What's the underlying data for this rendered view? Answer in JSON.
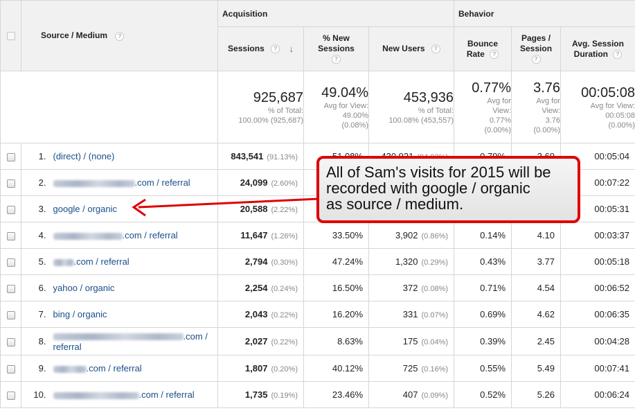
{
  "groups": {
    "acquisition": "Acquisition",
    "behavior": "Behavior"
  },
  "columns": {
    "source_medium": "Source / Medium",
    "sessions": "Sessions",
    "new_sessions": [
      "% New",
      "Sessions"
    ],
    "new_users": "New Users",
    "bounce_rate": [
      "Bounce",
      "Rate"
    ],
    "pages_session": [
      "Pages /",
      "Session"
    ],
    "avg_duration": [
      "Avg. Session",
      "Duration"
    ]
  },
  "icons": {
    "help": "help-circle-icon",
    "sort": "sort-down-arrow-icon",
    "help_glyph": "?",
    "sort_glyph": "↓"
  },
  "totals": {
    "sessions": {
      "value": "925,687",
      "sub1": "% of Total:",
      "sub2": "100.00% (925,687)"
    },
    "new_sessions": {
      "value": "49.04%",
      "sub1": "Avg for View:",
      "sub2": "49.00%",
      "sub3": "(0.08%)"
    },
    "new_users": {
      "value": "453,936",
      "sub1": "% of Total:",
      "sub2": "100.08% (453,557)"
    },
    "bounce_rate": {
      "value": "0.77%",
      "sub1": "Avg for",
      "sub2": "View:",
      "sub3": "0.77%",
      "sub4": "(0.00%)"
    },
    "pages_session": {
      "value": "3.76",
      "sub1": "Avg for",
      "sub2": "View:",
      "sub3": "3.76",
      "sub4": "(0.00%)"
    },
    "avg_duration": {
      "value": "00:05:08",
      "sub1": "Avg for View:",
      "sub2": "00:05:08",
      "sub3": "(0.00%)"
    }
  },
  "rows": [
    {
      "idx": "1.",
      "source": "(direct) / (none)",
      "sessions": "843,541",
      "sessions_pct": "(91.13%)",
      "new_sessions": "51.08%",
      "new_users": "430,921",
      "new_users_pct": "(94.93%)",
      "bounce": "0.79%",
      "pages": "3.69",
      "duration": "00:05:04"
    },
    {
      "idx": "2.",
      "source": ".com / referral",
      "sessions": "24,099",
      "sessions_pct": "(2.60%)",
      "new_sessions": "",
      "new_users": "",
      "new_users_pct": "",
      "bounce": "",
      "pages": "",
      "duration": "00:07:22"
    },
    {
      "idx": "3.",
      "source": "google / organic",
      "sessions": "20,588",
      "sessions_pct": "(2.22%)",
      "new_sessions": "",
      "new_users": "",
      "new_users_pct": "",
      "bounce": "",
      "pages": "",
      "duration": "00:05:31"
    },
    {
      "idx": "4.",
      "source": ".com / referral",
      "sessions": "11,647",
      "sessions_pct": "(1.26%)",
      "new_sessions": "33.50%",
      "new_users": "3,902",
      "new_users_pct": "(0.86%)",
      "bounce": "0.14%",
      "pages": "4.10",
      "duration": "00:03:37"
    },
    {
      "idx": "5.",
      "source": ".com / referral",
      "sessions": "2,794",
      "sessions_pct": "(0.30%)",
      "new_sessions": "47.24%",
      "new_users": "1,320",
      "new_users_pct": "(0.29%)",
      "bounce": "0.43%",
      "pages": "3.77",
      "duration": "00:05:18"
    },
    {
      "idx": "6.",
      "source": "yahoo / organic",
      "sessions": "2,254",
      "sessions_pct": "(0.24%)",
      "new_sessions": "16.50%",
      "new_users": "372",
      "new_users_pct": "(0.08%)",
      "bounce": "0.71%",
      "pages": "4.54",
      "duration": "00:06:52"
    },
    {
      "idx": "7.",
      "source": "bing / organic",
      "sessions": "2,043",
      "sessions_pct": "(0.22%)",
      "new_sessions": "16.20%",
      "new_users": "331",
      "new_users_pct": "(0.07%)",
      "bounce": "0.69%",
      "pages": "4.62",
      "duration": "00:06:35"
    },
    {
      "idx": "8.",
      "source": ".com /",
      "source2": "referral",
      "sessions": "2,027",
      "sessions_pct": "(0.22%)",
      "new_sessions": "8.63%",
      "new_users": "175",
      "new_users_pct": "(0.04%)",
      "bounce": "0.39%",
      "pages": "2.45",
      "duration": "00:04:28"
    },
    {
      "idx": "9.",
      "source": ".com / referral",
      "sessions": "1,807",
      "sessions_pct": "(0.20%)",
      "new_sessions": "40.12%",
      "new_users": "725",
      "new_users_pct": "(0.16%)",
      "bounce": "0.55%",
      "pages": "5.49",
      "duration": "00:07:41"
    },
    {
      "idx": "10.",
      "source": ".com / referral",
      "sessions": "1,735",
      "sessions_pct": "(0.19%)",
      "new_sessions": "23.46%",
      "new_users": "407",
      "new_users_pct": "(0.09%)",
      "bounce": "0.52%",
      "pages": "5.26",
      "duration": "00:06:24"
    }
  ],
  "callout": {
    "lines": [
      "All of Sam's visits for 2015 will be",
      "recorded with google / organic",
      "as source / medium."
    ],
    "border_color": "#e00000"
  },
  "colors": {
    "link": "#1a4e8a",
    "header_bg": "#f1f1f1",
    "border": "#d6d6d6",
    "muted": "#888888",
    "annotation": "#e00000"
  }
}
